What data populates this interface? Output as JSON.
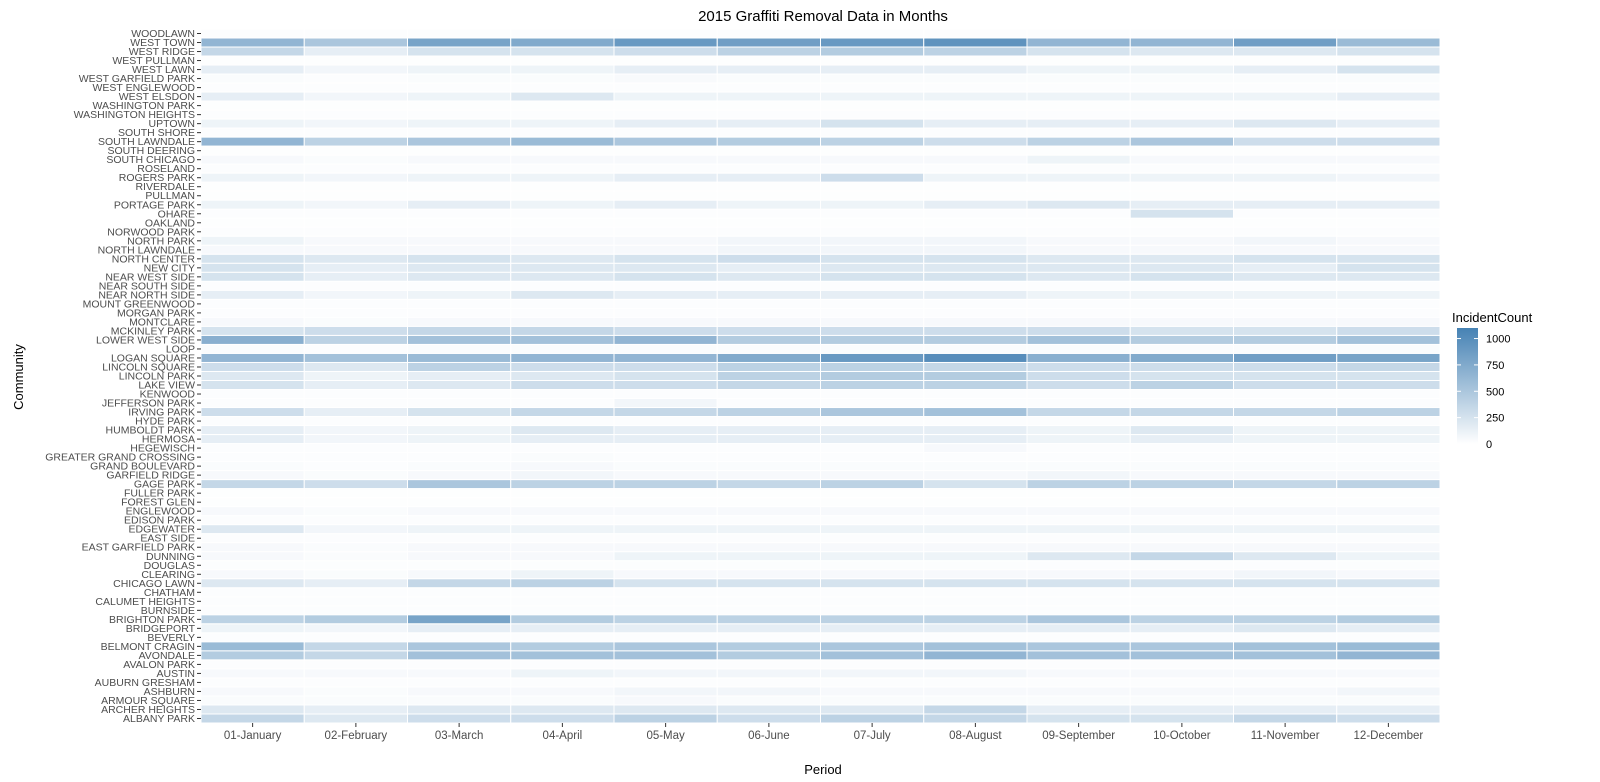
{
  "chart_data": {
    "type": "heatmap",
    "title": "2015 Graffiti Removal Data in Months",
    "xlabel": "Period",
    "ylabel": "Community",
    "legend": {
      "title": "IncidentCount",
      "ticks": [
        0,
        250,
        500,
        750,
        1000
      ],
      "range": [
        0,
        1100
      ],
      "low_color": "#ffffff",
      "high_color": "#4682b4",
      "placement": "right"
    },
    "grid": false,
    "x": [
      "01-January",
      "02-February",
      "03-March",
      "04-April",
      "05-May",
      "06-June",
      "07-July",
      "08-August",
      "09-September",
      "10-October",
      "11-November",
      "12-December"
    ],
    "y": [
      "WOODLAWN",
      "WEST TOWN",
      "WEST RIDGE",
      "WEST PULLMAN",
      "WEST LAWN",
      "WEST GARFIELD PARK",
      "WEST ENGLEWOOD",
      "WEST ELSDON",
      "WASHINGTON PARK",
      "WASHINGTON HEIGHTS",
      "UPTOWN",
      "SOUTH SHORE",
      "SOUTH LAWNDALE",
      "SOUTH DEERING",
      "SOUTH CHICAGO",
      "ROSELAND",
      "ROGERS PARK",
      "RIVERDALE",
      "PULLMAN",
      "PORTAGE PARK",
      "OHARE",
      "OAKLAND",
      "NORWOOD PARK",
      "NORTH PARK",
      "NORTH LAWNDALE",
      "NORTH CENTER",
      "NEW CITY",
      "NEAR WEST SIDE",
      "NEAR SOUTH SIDE",
      "NEAR NORTH SIDE",
      "MOUNT GREENWOOD",
      "MORGAN PARK",
      "MONTCLARE",
      "MCKINLEY PARK",
      "LOWER WEST SIDE",
      "LOOP",
      "LOGAN SQUARE",
      "LINCOLN SQUARE",
      "LINCOLN PARK",
      "LAKE VIEW",
      "KENWOOD",
      "JEFFERSON PARK",
      "IRVING PARK",
      "HYDE PARK",
      "HUMBOLDT PARK",
      "HERMOSA",
      "HEGEWISCH",
      "GREATER GRAND CROSSING",
      "GRAND BOULEVARD",
      "GARFIELD RIDGE",
      "GAGE PARK",
      "FULLER PARK",
      "FOREST GLEN",
      "ENGLEWOOD",
      "EDISON PARK",
      "EDGEWATER",
      "EAST SIDE",
      "EAST GARFIELD PARK",
      "DUNNING",
      "DOUGLAS",
      "CLEARING",
      "CHICAGO LAWN",
      "CHATHAM",
      "CALUMET HEIGHTS",
      "BURNSIDE",
      "BRIGHTON PARK",
      "BRIDGEPORT",
      "BEVERLY",
      "BELMONT CRAGIN",
      "AVONDALE",
      "AVALON PARK",
      "AUSTIN",
      "AUBURN GRESHAM",
      "ASHBURN",
      "ARMOUR SQUARE",
      "ARCHER HEIGHTS",
      "ALBANY PARK"
    ],
    "values": [
      [
        20,
        15,
        20,
        20,
        20,
        20,
        20,
        20,
        20,
        20,
        20,
        20
      ],
      [
        650,
        500,
        800,
        750,
        900,
        850,
        900,
        950,
        650,
        650,
        850,
        600
      ],
      [
        350,
        150,
        250,
        250,
        300,
        400,
        450,
        400,
        250,
        200,
        200,
        250
      ],
      [
        10,
        10,
        10,
        10,
        10,
        10,
        10,
        10,
        10,
        10,
        10,
        10
      ],
      [
        150,
        80,
        100,
        100,
        150,
        150,
        150,
        150,
        100,
        100,
        150,
        250
      ],
      [
        30,
        20,
        30,
        30,
        40,
        30,
        30,
        30,
        30,
        30,
        30,
        30
      ],
      [
        20,
        20,
        20,
        20,
        20,
        20,
        20,
        20,
        20,
        20,
        20,
        20
      ],
      [
        150,
        80,
        100,
        200,
        100,
        100,
        100,
        100,
        100,
        100,
        100,
        150
      ],
      [
        10,
        10,
        10,
        10,
        10,
        10,
        10,
        10,
        10,
        10,
        10,
        10
      ],
      [
        20,
        20,
        20,
        20,
        20,
        20,
        20,
        20,
        20,
        20,
        20,
        20
      ],
      [
        100,
        80,
        100,
        100,
        150,
        150,
        250,
        150,
        150,
        150,
        200,
        150
      ],
      [
        20,
        20,
        20,
        20,
        20,
        20,
        20,
        20,
        20,
        20,
        20,
        20
      ],
      [
        650,
        400,
        500,
        600,
        500,
        450,
        400,
        300,
        400,
        500,
        300,
        300
      ],
      [
        10,
        10,
        10,
        10,
        10,
        10,
        10,
        10,
        10,
        10,
        10,
        10
      ],
      [
        50,
        30,
        50,
        50,
        50,
        50,
        50,
        50,
        100,
        50,
        50,
        50
      ],
      [
        20,
        20,
        20,
        20,
        20,
        20,
        20,
        20,
        20,
        20,
        20,
        20
      ],
      [
        100,
        80,
        100,
        100,
        150,
        150,
        300,
        100,
        100,
        100,
        100,
        80
      ],
      [
        10,
        10,
        10,
        10,
        10,
        10,
        10,
        10,
        10,
        10,
        10,
        10
      ],
      [
        10,
        10,
        10,
        10,
        10,
        10,
        10,
        10,
        10,
        10,
        10,
        10
      ],
      [
        100,
        80,
        150,
        100,
        150,
        100,
        100,
        150,
        200,
        150,
        150,
        150
      ],
      [
        20,
        20,
        20,
        20,
        20,
        20,
        20,
        20,
        20,
        250,
        20,
        20
      ],
      [
        10,
        10,
        10,
        10,
        10,
        10,
        10,
        10,
        10,
        10,
        10,
        10
      ],
      [
        20,
        20,
        20,
        20,
        20,
        20,
        20,
        20,
        20,
        20,
        20,
        20
      ],
      [
        100,
        50,
        50,
        50,
        50,
        80,
        80,
        80,
        50,
        50,
        80,
        50
      ],
      [
        50,
        50,
        50,
        50,
        50,
        80,
        80,
        80,
        50,
        50,
        50,
        50
      ],
      [
        250,
        200,
        250,
        200,
        250,
        300,
        250,
        250,
        200,
        200,
        250,
        250
      ],
      [
        250,
        150,
        200,
        200,
        200,
        150,
        200,
        200,
        200,
        200,
        150,
        250
      ],
      [
        250,
        150,
        200,
        200,
        250,
        200,
        250,
        250,
        200,
        250,
        200,
        200
      ],
      [
        20,
        20,
        20,
        20,
        20,
        20,
        20,
        20,
        20,
        20,
        20,
        20
      ],
      [
        150,
        80,
        100,
        200,
        150,
        150,
        150,
        150,
        100,
        100,
        100,
        100
      ],
      [
        20,
        20,
        20,
        20,
        20,
        20,
        20,
        20,
        20,
        20,
        20,
        20
      ],
      [
        20,
        20,
        20,
        20,
        20,
        20,
        20,
        20,
        20,
        20,
        20,
        20
      ],
      [
        50,
        30,
        50,
        50,
        50,
        50,
        50,
        50,
        50,
        50,
        50,
        50
      ],
      [
        250,
        300,
        350,
        350,
        300,
        300,
        300,
        300,
        300,
        250,
        250,
        300
      ],
      [
        700,
        400,
        550,
        550,
        650,
        450,
        450,
        450,
        550,
        450,
        450,
        550
      ],
      [
        30,
        20,
        30,
        30,
        30,
        30,
        30,
        30,
        30,
        30,
        30,
        30
      ],
      [
        650,
        550,
        600,
        650,
        650,
        750,
        900,
        1000,
        700,
        750,
        850,
        800
      ],
      [
        300,
        200,
        400,
        300,
        300,
        400,
        400,
        350,
        300,
        300,
        300,
        350
      ],
      [
        200,
        100,
        150,
        200,
        250,
        400,
        450,
        450,
        300,
        250,
        250,
        250
      ],
      [
        250,
        150,
        200,
        300,
        300,
        350,
        400,
        400,
        300,
        400,
        300,
        300
      ],
      [
        20,
        20,
        20,
        20,
        20,
        20,
        20,
        20,
        20,
        20,
        20,
        20
      ],
      [
        20,
        20,
        20,
        20,
        80,
        20,
        20,
        20,
        20,
        20,
        20,
        20
      ],
      [
        300,
        150,
        250,
        350,
        350,
        400,
        500,
        550,
        350,
        350,
        350,
        400
      ],
      [
        20,
        20,
        20,
        20,
        20,
        20,
        20,
        20,
        20,
        20,
        20,
        20
      ],
      [
        150,
        80,
        100,
        200,
        150,
        150,
        150,
        150,
        100,
        200,
        100,
        100
      ],
      [
        150,
        80,
        100,
        150,
        150,
        150,
        150,
        150,
        100,
        150,
        100,
        100
      ],
      [
        20,
        20,
        20,
        20,
        20,
        20,
        20,
        50,
        20,
        20,
        20,
        20
      ],
      [
        20,
        20,
        20,
        30,
        20,
        20,
        20,
        20,
        20,
        20,
        20,
        20
      ],
      [
        30,
        20,
        30,
        50,
        30,
        30,
        30,
        30,
        30,
        30,
        30,
        30
      ],
      [
        50,
        30,
        50,
        80,
        50,
        50,
        50,
        50,
        80,
        50,
        50,
        50
      ],
      [
        350,
        300,
        500,
        400,
        400,
        350,
        400,
        250,
        400,
        400,
        350,
        400
      ],
      [
        10,
        10,
        10,
        10,
        10,
        10,
        10,
        10,
        10,
        10,
        10,
        10
      ],
      [
        10,
        10,
        10,
        10,
        10,
        10,
        10,
        10,
        10,
        10,
        10,
        10
      ],
      [
        50,
        30,
        50,
        50,
        50,
        50,
        50,
        50,
        50,
        50,
        50,
        50
      ],
      [
        20,
        20,
        20,
        20,
        20,
        20,
        20,
        20,
        20,
        20,
        20,
        20
      ],
      [
        200,
        80,
        100,
        100,
        100,
        100,
        100,
        100,
        100,
        100,
        100,
        100
      ],
      [
        20,
        20,
        20,
        20,
        20,
        20,
        20,
        20,
        20,
        20,
        20,
        20
      ],
      [
        50,
        30,
        50,
        50,
        50,
        50,
        50,
        50,
        50,
        50,
        50,
        50
      ],
      [
        50,
        30,
        50,
        50,
        100,
        100,
        100,
        100,
        200,
        350,
        200,
        100
      ],
      [
        20,
        20,
        20,
        20,
        20,
        20,
        20,
        20,
        20,
        20,
        20,
        20
      ],
      [
        50,
        30,
        50,
        100,
        50,
        50,
        50,
        50,
        50,
        50,
        80,
        50
      ],
      [
        200,
        150,
        350,
        400,
        250,
        250,
        250,
        250,
        250,
        250,
        250,
        250
      ],
      [
        20,
        20,
        20,
        20,
        20,
        20,
        20,
        20,
        20,
        20,
        20,
        20
      ],
      [
        20,
        20,
        20,
        20,
        20,
        20,
        20,
        20,
        20,
        20,
        20,
        20
      ],
      [
        20,
        20,
        20,
        20,
        20,
        20,
        20,
        20,
        20,
        20,
        20,
        20
      ],
      [
        400,
        450,
        800,
        450,
        400,
        400,
        400,
        400,
        500,
        400,
        400,
        450
      ],
      [
        100,
        80,
        150,
        150,
        150,
        150,
        150,
        150,
        150,
        150,
        200,
        150
      ],
      [
        20,
        20,
        20,
        20,
        20,
        20,
        20,
        20,
        20,
        20,
        20,
        20
      ],
      [
        600,
        350,
        500,
        450,
        500,
        450,
        500,
        550,
        500,
        500,
        550,
        600
      ],
      [
        450,
        350,
        550,
        550,
        550,
        450,
        550,
        650,
        550,
        550,
        550,
        650
      ],
      [
        20,
        20,
        20,
        20,
        20,
        20,
        20,
        20,
        20,
        20,
        20,
        20
      ],
      [
        50,
        50,
        50,
        100,
        80,
        80,
        80,
        80,
        50,
        50,
        50,
        50
      ],
      [
        20,
        20,
        20,
        20,
        20,
        20,
        20,
        20,
        20,
        20,
        20,
        20
      ],
      [
        50,
        30,
        50,
        50,
        80,
        80,
        50,
        50,
        50,
        50,
        50,
        80
      ],
      [
        30,
        30,
        30,
        30,
        50,
        30,
        30,
        30,
        30,
        30,
        30,
        30
      ],
      [
        200,
        150,
        200,
        200,
        200,
        200,
        200,
        350,
        150,
        150,
        150,
        150
      ],
      [
        350,
        200,
        300,
        300,
        400,
        300,
        400,
        350,
        250,
        250,
        350,
        300
      ]
    ]
  }
}
